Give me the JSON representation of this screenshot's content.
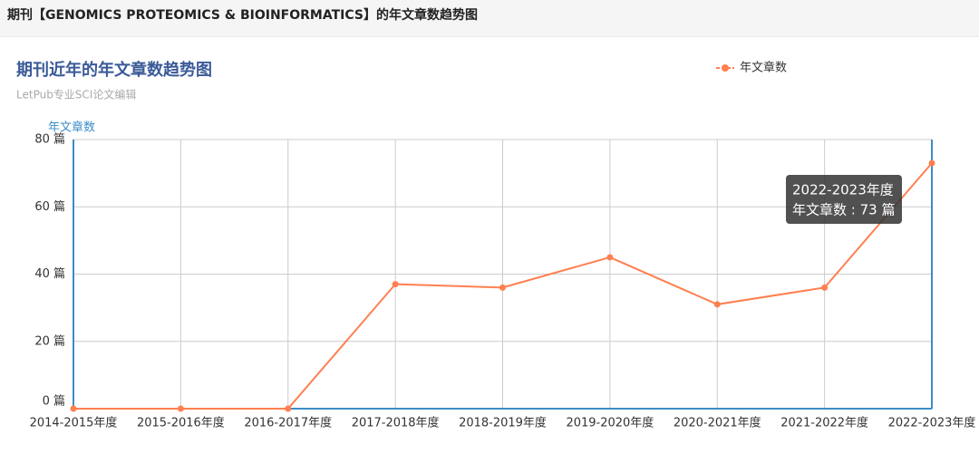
{
  "header": {
    "title": "期刊【GENOMICS PROTEOMICS & BIOINFORMATICS】的年文章数趋势图"
  },
  "chart_data": {
    "type": "line",
    "title": "期刊近年的年文章数趋势图",
    "subtitle": "LetPub专业SCI论文编辑",
    "y_label": "年文章数",
    "categories": [
      "2014-2015年度",
      "2015-2016年度",
      "2016-2017年度",
      "2017-2018年度",
      "2018-2019年度",
      "2019-2020年度",
      "2020-2021年度",
      "2021-2022年度",
      "2022-2023年度"
    ],
    "series": [
      {
        "name": "年文章数",
        "color": "#ff7f50",
        "values": [
          0,
          0,
          0,
          37,
          36,
          45,
          31,
          36,
          73
        ]
      }
    ],
    "ylim": [
      0,
      80
    ],
    "yticks": [
      {
        "value": 0,
        "label": "0 篇"
      },
      {
        "value": 20,
        "label": "20 篇"
      },
      {
        "value": 40,
        "label": "40 篇"
      },
      {
        "value": 60,
        "label": "60 篇"
      },
      {
        "value": 80,
        "label": "80 篇"
      }
    ],
    "grid": true,
    "legend": "top-right",
    "tooltip": {
      "title": "2022-2023年度",
      "text": "年文章数 : 73 篇"
    }
  }
}
